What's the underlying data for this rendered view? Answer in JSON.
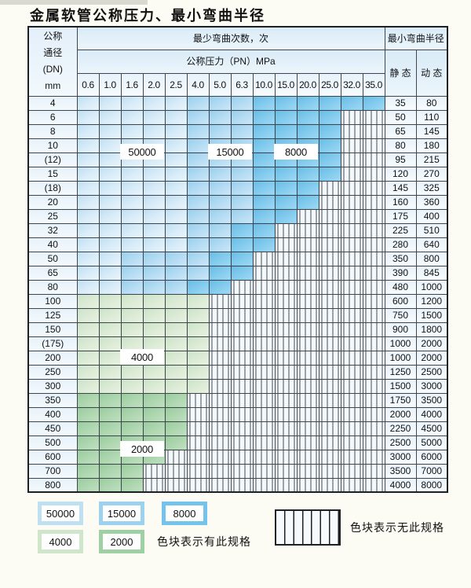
{
  "title": "金属软管公称压力、最小弯曲半径",
  "table": {
    "dn_header_lines": [
      "公称",
      "通径",
      "(DN)",
      "mm"
    ],
    "bend_times_header": "最少弯曲次数，次",
    "pressure_header": "公称压力（PN）MPa",
    "radius_header": "最小弯曲半径",
    "static_header": "静 态",
    "dynamic_header": "动 态",
    "pressure_columns": [
      "0.6",
      "1.0",
      "1.6",
      "2.0",
      "2.5",
      "4.0",
      "5.0",
      "6.3",
      "10.0",
      "15.0",
      "20.0",
      "25.0",
      "32.0",
      "35.0"
    ],
    "band_legend_note": "A=50000, B=15000, C=8000, D=4000, E=2000, X=no-spec-hatch",
    "rows": [
      {
        "dn": "4",
        "bands": "AAAAABBBCCCCCC",
        "static": "35",
        "dynamic": "80"
      },
      {
        "dn": "6",
        "bands": "AAAAABBBCCCCXX",
        "static": "50",
        "dynamic": "110"
      },
      {
        "dn": "8",
        "bands": "AAAAABBBCCCCXX",
        "static": "65",
        "dynamic": "145"
      },
      {
        "dn": "10",
        "bands": "AAAAABBBCCCCXX",
        "static": "80",
        "dynamic": "180"
      },
      {
        "dn": "(12)",
        "bands": "AAAAABBBCCCCXX",
        "static": "95",
        "dynamic": "215"
      },
      {
        "dn": "15",
        "bands": "AAAAABBBCCCCXX",
        "static": "120",
        "dynamic": "270"
      },
      {
        "dn": "(18)",
        "bands": "AAAAABBBCCCXXX",
        "static": "145",
        "dynamic": "325"
      },
      {
        "dn": "20",
        "bands": "AAAAABBBCCCXXX",
        "static": "160",
        "dynamic": "360"
      },
      {
        "dn": "25",
        "bands": "AAAAABBBCCXXXX",
        "static": "175",
        "dynamic": "400"
      },
      {
        "dn": "32",
        "bands": "AAAAABBCCXXXXX",
        "static": "225",
        "dynamic": "510"
      },
      {
        "dn": "40",
        "bands": "AAAAABBCCXXXXX",
        "static": "280",
        "dynamic": "640"
      },
      {
        "dn": "50",
        "bands": "AABBBBCCXXXXXX",
        "static": "350",
        "dynamic": "800"
      },
      {
        "dn": "65",
        "bands": "AABBBBCCXXXXXX",
        "static": "390",
        "dynamic": "845"
      },
      {
        "dn": "80",
        "bands": "AABBBCCXXXXXXX",
        "static": "480",
        "dynamic": "1000"
      },
      {
        "dn": "100",
        "bands": "DDDDDDXXXXXXXX",
        "static": "600",
        "dynamic": "1200"
      },
      {
        "dn": "125",
        "bands": "DDDDDDXXXXXXXX",
        "static": "750",
        "dynamic": "1500"
      },
      {
        "dn": "150",
        "bands": "DDDDDDXXXXXXXX",
        "static": "900",
        "dynamic": "1800"
      },
      {
        "dn": "(175)",
        "bands": "DDDDDDXXXXXXXX",
        "static": "1000",
        "dynamic": "2000"
      },
      {
        "dn": "200",
        "bands": "DDDDDDXXXXXXXX",
        "static": "1000",
        "dynamic": "2000"
      },
      {
        "dn": "250",
        "bands": "DDDDDDXXXXXXXX",
        "static": "1250",
        "dynamic": "2500"
      },
      {
        "dn": "300",
        "bands": "DDDDDDXXXXXXXX",
        "static": "1500",
        "dynamic": "3000"
      },
      {
        "dn": "350",
        "bands": "EEEEEXXXXXXXXX",
        "static": "1750",
        "dynamic": "3500"
      },
      {
        "dn": "400",
        "bands": "EEEEEXXXXXXXXX",
        "static": "2000",
        "dynamic": "4000"
      },
      {
        "dn": "450",
        "bands": "EEEEEXXXXXXXXX",
        "static": "2250",
        "dynamic": "4500"
      },
      {
        "dn": "500",
        "bands": "EEEEEXXXXXXXXX",
        "static": "2500",
        "dynamic": "5000"
      },
      {
        "dn": "600",
        "bands": "EEEEXXXXXXXXXX",
        "static": "3000",
        "dynamic": "6000"
      },
      {
        "dn": "700",
        "bands": "EEEXXXXXXXXXXX",
        "static": "3500",
        "dynamic": "7000"
      },
      {
        "dn": "800",
        "bands": "EEEXXXXXXXXXXX",
        "static": "4000",
        "dynamic": "8000"
      }
    ],
    "overlay_labels": [
      "50000",
      "15000",
      "8000",
      "4000",
      "2000"
    ]
  },
  "legend": {
    "swatches": [
      {
        "label": "50000",
        "band": "A",
        "color": "#bfe0f1"
      },
      {
        "label": "15000",
        "band": "B",
        "color": "#9cd2ef"
      },
      {
        "label": "8000",
        "band": "C",
        "color": "#74c3ea"
      },
      {
        "label": "4000",
        "band": "D",
        "color": "#cfe6cb"
      },
      {
        "label": "2000",
        "band": "E",
        "color": "#9fd0a3"
      }
    ],
    "has_spec_text": "色块表示有此规格",
    "no_spec_text": "色块表示无此规格"
  },
  "colors": {
    "band_50000": "#bfe0f1",
    "band_15000": "#9cd2ef",
    "band_8000": "#74c3ea",
    "band_4000": "#cfe6cb",
    "band_2000": "#9fd0a3",
    "header_bg": "#e0eef8",
    "grid_line": "#40464b"
  }
}
